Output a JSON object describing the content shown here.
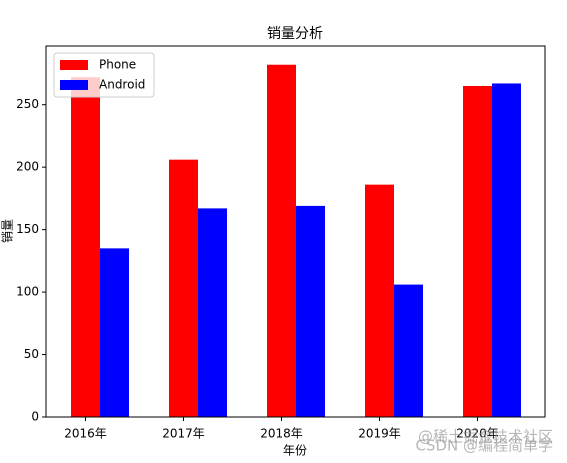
{
  "chart_data": {
    "type": "bar",
    "title": "销量分析",
    "xlabel": "年份",
    "ylabel": "销量",
    "categories": [
      "2016年",
      "2017年",
      "2018年",
      "2019年",
      "2020年"
    ],
    "series": [
      {
        "name": "Phone",
        "color": "#ff0000",
        "values": [
          272,
          206,
          282,
          186,
          265
        ]
      },
      {
        "name": "Android",
        "color": "#0000ff",
        "values": [
          135,
          167,
          169,
          106,
          267
        ]
      }
    ],
    "ylim": [
      0,
      297
    ],
    "yticks": [
      0,
      50,
      100,
      150,
      200,
      250
    ],
    "legend": "upper left"
  },
  "watermarks": [
    "@稀土掘金技术社区",
    "CSDN @编程简单学"
  ]
}
